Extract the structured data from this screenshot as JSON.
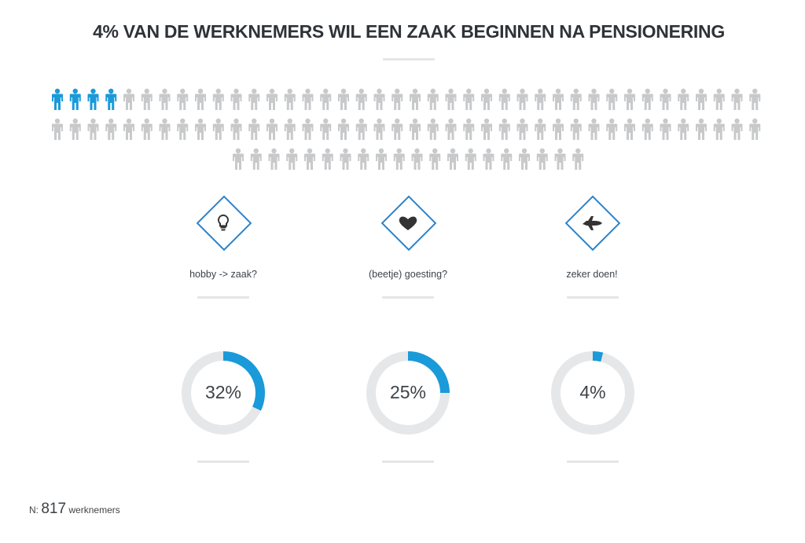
{
  "title": "4% VAN DE WERKNEMERS WIL EEN ZAAK BEGINNEN NA PENSIONERING",
  "colors": {
    "accent": "#1a9ad9",
    "person_gray": "#c8c9cb",
    "ring_gray": "#e6e7e9",
    "diamond_border": "#2f83c8"
  },
  "pictogram": {
    "total": 100,
    "highlighted": 4
  },
  "categories": [
    {
      "label": "hobby -> zaak?",
      "icon": "lightbulb-icon",
      "percent_label": "32%"
    },
    {
      "label": "(beetje) goesting?",
      "icon": "heart-icon",
      "percent_label": "25%"
    },
    {
      "label": "zeker doen!",
      "icon": "plane-icon",
      "percent_label": "4%"
    }
  ],
  "chart_data": [
    {
      "type": "pictogram",
      "title": "4% VAN DE WERKNEMERS WIL EEN ZAAK BEGINNEN NA PENSIONERING",
      "total": 100,
      "highlighted": 4
    },
    {
      "type": "pie",
      "categories": [
        "hobby -> zaak?",
        "(beetje) goesting?",
        "zeker doen!"
      ],
      "values": [
        32,
        25,
        4
      ]
    }
  ],
  "footer": {
    "prefix": "N:",
    "count": "817",
    "suffix": "werknemers"
  }
}
